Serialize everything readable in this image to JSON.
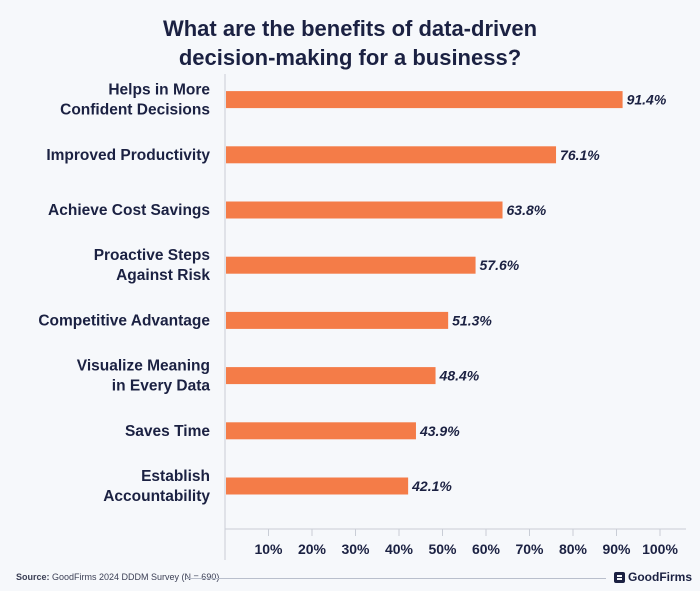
{
  "title_lines": [
    "What are the benefits of data-driven",
    "decision-making for a business?"
  ],
  "footer": {
    "source_label": "Source:",
    "source_text": " GoodFirms 2024 DDDM Survey (N = 690)",
    "brand": "GoodFirms"
  },
  "colors": {
    "bar": "#f47c48",
    "text": "#1b2142",
    "axis": "#c9cdd6",
    "background": "#f6f8fb"
  },
  "chart_data": {
    "type": "bar",
    "orientation": "horizontal",
    "categories": [
      [
        "Helps in More",
        "Confident Decisions"
      ],
      [
        "Improved Productivity"
      ],
      [
        "Achieve Cost Savings"
      ],
      [
        "Proactive Steps",
        "Against Risk"
      ],
      [
        "Competitive Advantage"
      ],
      [
        "Visualize Meaning",
        "in Every Data"
      ],
      [
        "Saves Time"
      ],
      [
        "Establish",
        "Accountability"
      ]
    ],
    "values": [
      91.4,
      76.1,
      63.8,
      57.6,
      51.3,
      48.4,
      43.9,
      42.1
    ],
    "value_labels": [
      "91.4%",
      "76.1%",
      "63.8%",
      "57.6%",
      "51.3%",
      "48.4%",
      "43.9%",
      "42.1%"
    ],
    "x_ticks": [
      "10%",
      "20%",
      "30%",
      "40%",
      "50%",
      "60%",
      "70%",
      "80%",
      "90%",
      "100%"
    ],
    "xlim": [
      0,
      100
    ],
    "grid": false
  }
}
